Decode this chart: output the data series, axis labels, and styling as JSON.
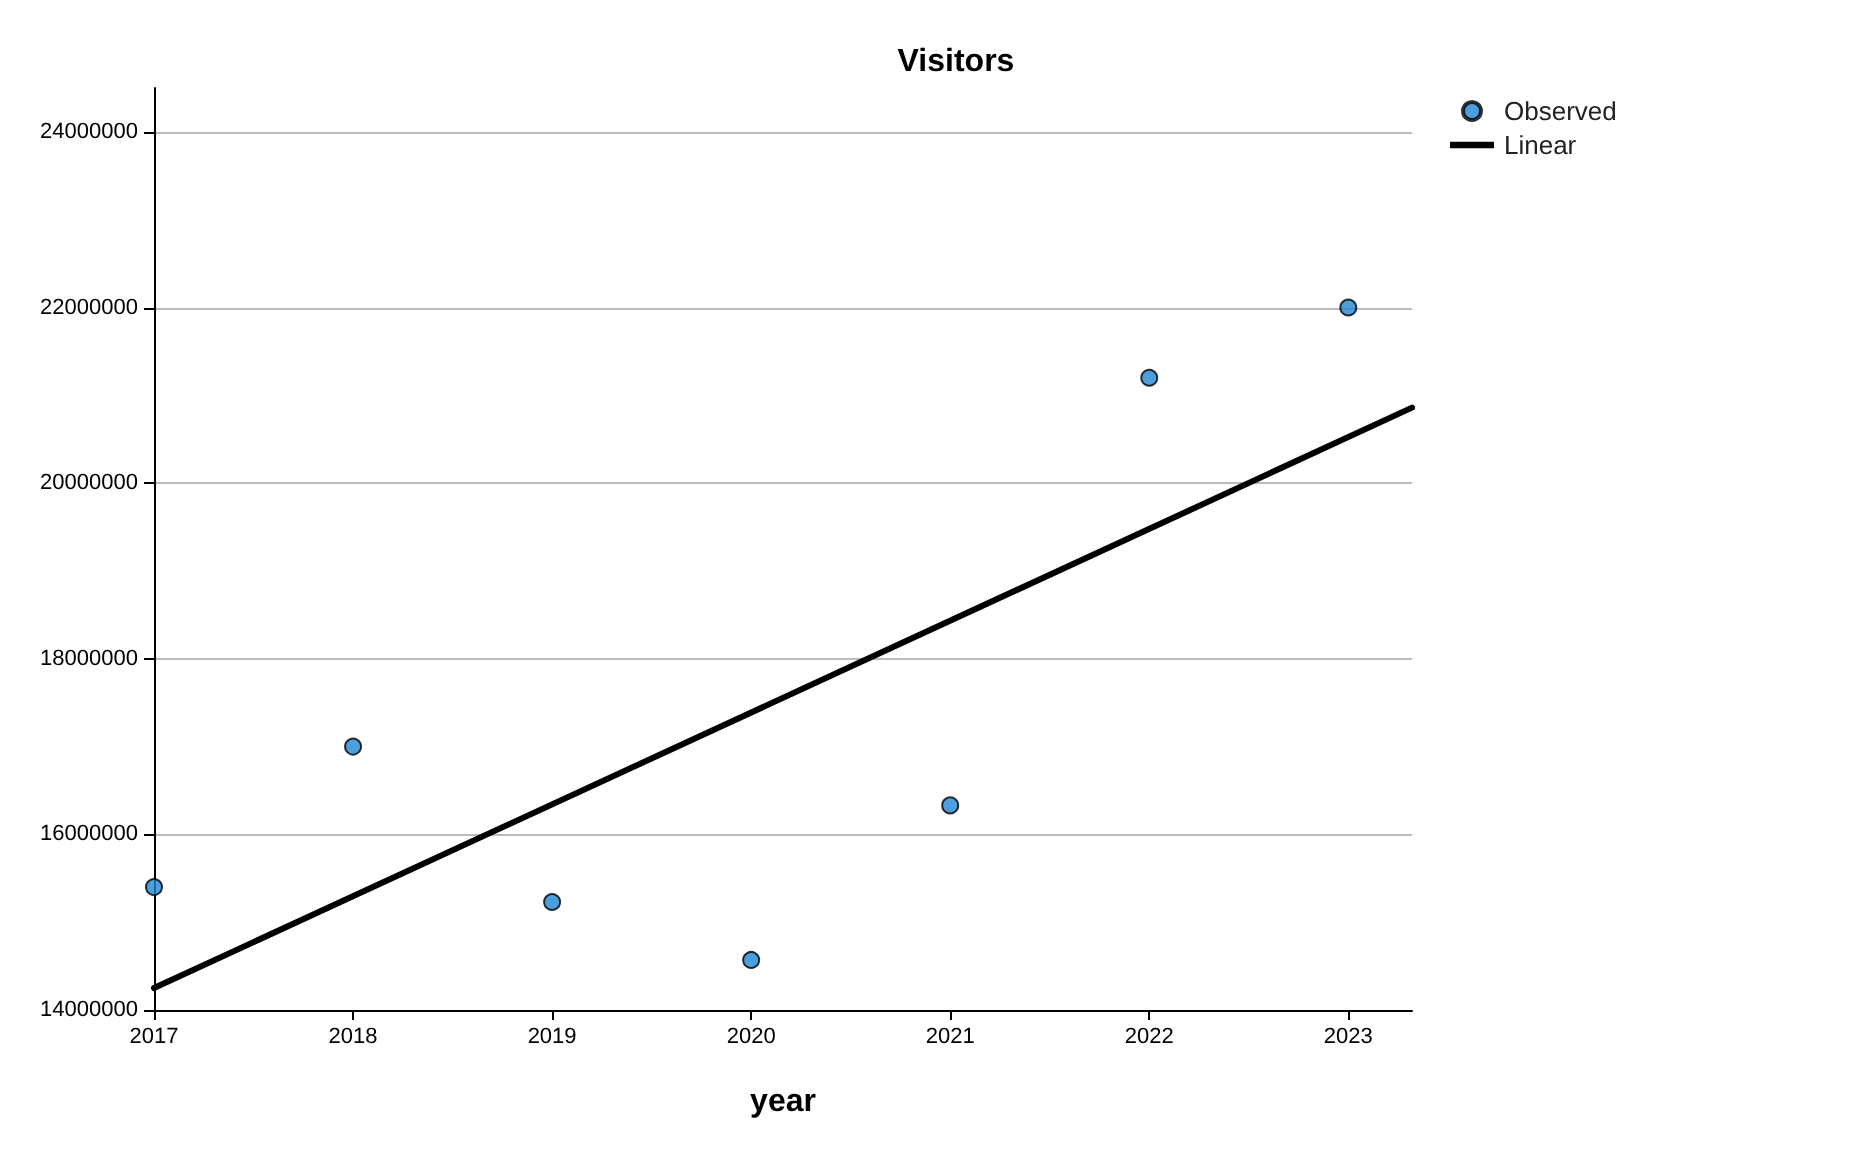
{
  "chart_data": {
    "type": "scatter",
    "title": "Visitors",
    "xlabel": "year",
    "x": [
      2017,
      2018,
      2019,
      2020,
      2021,
      2022,
      2023
    ],
    "series": [
      {
        "name": "Observed",
        "color": "#1f86d4",
        "marker": "circle",
        "values": [
          15400000,
          17000000,
          15230000,
          14570000,
          16330000,
          21200000,
          22000000
        ]
      },
      {
        "name": "Linear",
        "type": "line",
        "color": "#000000",
        "marker": "none",
        "line_style": "solid",
        "x": [
          2017,
          2023.32
        ],
        "values": [
          14250000,
          20860000
        ]
      }
    ],
    "xlim": [
      2017,
      2023.32
    ],
    "xticks": [
      2017,
      2018,
      2019,
      2020,
      2021,
      2022,
      2023
    ],
    "ylim": [
      14000000,
      24500000
    ],
    "yticks": [
      14000000,
      16000000,
      18000000,
      20000000,
      22000000,
      24000000
    ],
    "grid": "y",
    "legend": "top right"
  }
}
